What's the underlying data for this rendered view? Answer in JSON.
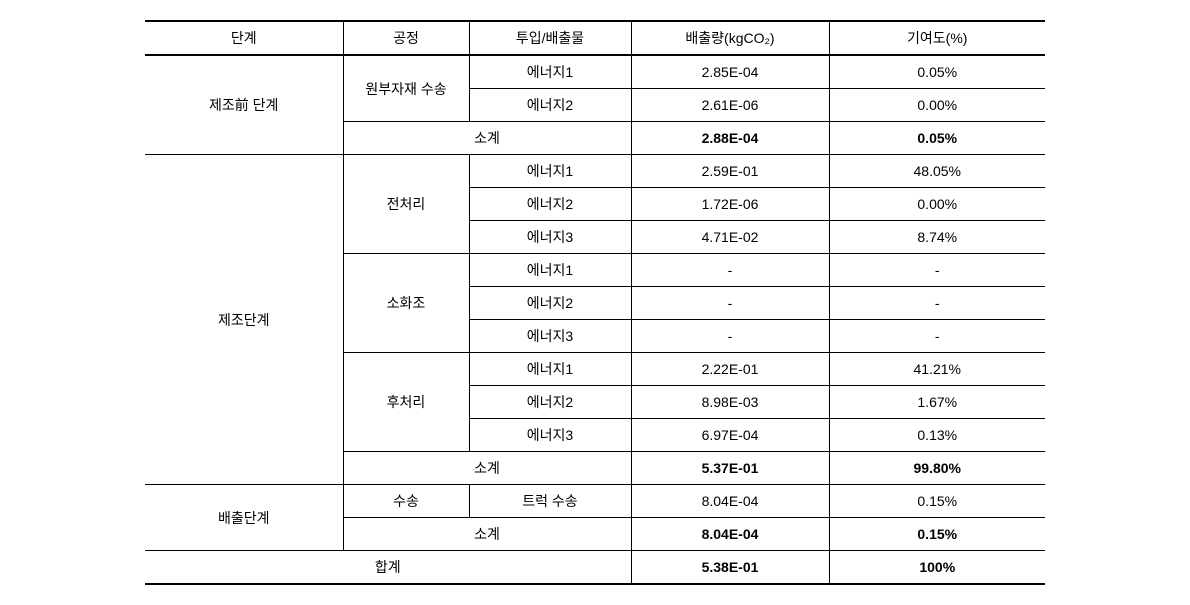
{
  "headers": {
    "stage": "단계",
    "process": "공정",
    "input_output": "투입/배출물",
    "emission": "배출량(kgCO₂)",
    "contribution": "기여도(%)"
  },
  "stages": {
    "pre_mfg": "제조前 단계",
    "mfg": "제조단계",
    "emission": "배출단계"
  },
  "processes": {
    "raw_transport": "원부자재 수송",
    "pretreatment": "전처리",
    "digester": "소화조",
    "posttreatment": "후처리",
    "transport": "수송"
  },
  "inputs": {
    "energy1": "에너지1",
    "energy2": "에너지2",
    "energy3": "에너지3",
    "truck": "트럭 수송"
  },
  "labels": {
    "subtotal": "소계",
    "total": "합계"
  },
  "data": {
    "pre_e1_em": "2.85E-04",
    "pre_e1_ct": "0.05%",
    "pre_e2_em": "2.61E-06",
    "pre_e2_ct": "0.00%",
    "pre_sub_em": "2.88E-04",
    "pre_sub_ct": "0.05%",
    "m_pt_e1_em": "2.59E-01",
    "m_pt_e1_ct": "48.05%",
    "m_pt_e2_em": "1.72E-06",
    "m_pt_e2_ct": "0.00%",
    "m_pt_e3_em": "4.71E-02",
    "m_pt_e3_ct": "8.74%",
    "m_dg_e1_em": "-",
    "m_dg_e1_ct": "-",
    "m_dg_e2_em": "-",
    "m_dg_e2_ct": "-",
    "m_dg_e3_em": "-",
    "m_dg_e3_ct": "-",
    "m_po_e1_em": "2.22E-01",
    "m_po_e1_ct": "41.21%",
    "m_po_e2_em": "8.98E-03",
    "m_po_e2_ct": "1.67%",
    "m_po_e3_em": "6.97E-04",
    "m_po_e3_ct": "0.13%",
    "m_sub_em": "5.37E-01",
    "m_sub_ct": "99.80%",
    "em_tr_em": "8.04E-04",
    "em_tr_ct": "0.15%",
    "em_sub_em": "8.04E-04",
    "em_sub_ct": "0.15%",
    "total_em": "5.38E-01",
    "total_ct": "100%"
  }
}
